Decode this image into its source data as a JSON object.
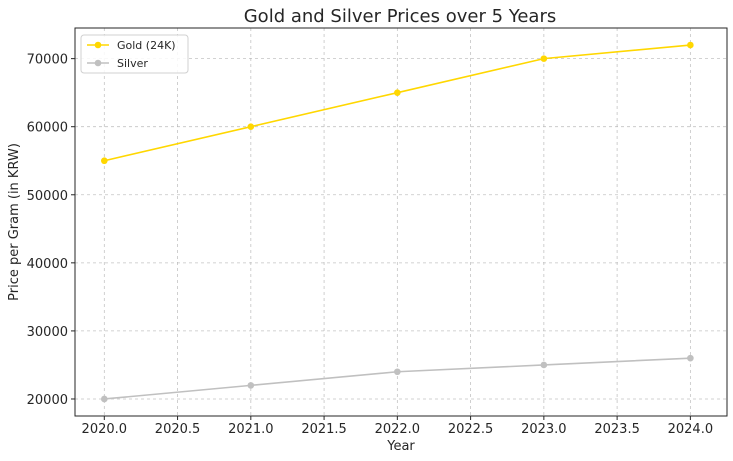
{
  "chart_data": {
    "type": "line",
    "title": "Gold and Silver Prices over 5 Years",
    "xlabel": "Year",
    "ylabel": "Price per Gram (in KRW)",
    "x": [
      2020,
      2021,
      2022,
      2023,
      2024
    ],
    "xlim": [
      2019.8,
      2024.25
    ],
    "ylim": [
      17500,
      74500
    ],
    "xticks": [
      2020.0,
      2020.5,
      2021.0,
      2021.5,
      2022.0,
      2022.5,
      2023.0,
      2023.5,
      2024.0
    ],
    "xtick_labels": [
      "2020.0",
      "2020.5",
      "2021.0",
      "2021.5",
      "2022.0",
      "2022.5",
      "2023.0",
      "2023.5",
      "2024.0"
    ],
    "yticks": [
      20000,
      30000,
      40000,
      50000,
      60000,
      70000
    ],
    "ytick_labels": [
      "20000",
      "30000",
      "40000",
      "50000",
      "60000",
      "70000"
    ],
    "grid": true,
    "legend_position": "top-left",
    "series": [
      {
        "name": "Gold (24K)",
        "values": [
          55000,
          60000,
          65000,
          70000,
          72000
        ],
        "color": "#FFD700"
      },
      {
        "name": "Silver",
        "values": [
          20000,
          22000,
          24000,
          25000,
          26000
        ],
        "color": "#C0C0C0"
      }
    ]
  }
}
